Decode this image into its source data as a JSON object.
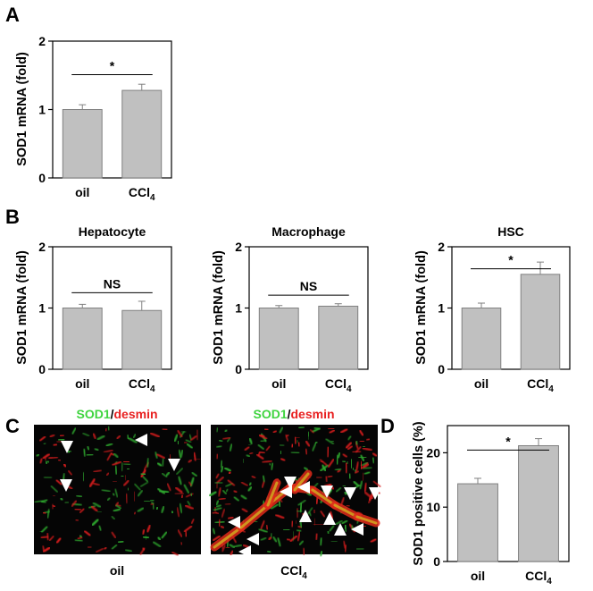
{
  "panel_labels": {
    "a": "A",
    "b": "B",
    "c": "C",
    "d": "D"
  },
  "colors": {
    "bar_fill": "#c0c0c0",
    "bar_stroke": "#808080",
    "marker_green": "#3fd43f",
    "marker_red": "#e82020",
    "axis": "#000000"
  },
  "chart_data": [
    {
      "id": "A",
      "type": "bar",
      "title": "",
      "categories": [
        "oil",
        "CCl4"
      ],
      "category_sub": [
        "",
        "4"
      ],
      "values": [
        1.0,
        1.28
      ],
      "errors": [
        0.07,
        0.09
      ],
      "ylabel": "SOD1 mRNA (fold)",
      "ylim": [
        0,
        2
      ],
      "yticks": [
        0,
        1,
        2
      ],
      "significance": "*",
      "grid": false
    },
    {
      "id": "B1",
      "type": "bar",
      "title": "Hepatocyte",
      "categories": [
        "oil",
        "CCl4"
      ],
      "category_sub": [
        "",
        "4"
      ],
      "values": [
        1.0,
        0.96
      ],
      "errors": [
        0.06,
        0.15
      ],
      "ylabel": "SOD1 mRNA (fold)",
      "ylim": [
        0,
        2
      ],
      "yticks": [
        0,
        1,
        2
      ],
      "significance": "NS",
      "grid": false
    },
    {
      "id": "B2",
      "type": "bar",
      "title": "Macrophage",
      "categories": [
        "oil",
        "CCl4"
      ],
      "category_sub": [
        "",
        "4"
      ],
      "values": [
        1.0,
        1.03
      ],
      "errors": [
        0.04,
        0.04
      ],
      "ylabel": "SOD1 mRNA (fold)",
      "ylim": [
        0,
        2
      ],
      "yticks": [
        0,
        1,
        2
      ],
      "significance": "NS",
      "grid": false
    },
    {
      "id": "B3",
      "type": "bar",
      "title": "HSC",
      "categories": [
        "oil",
        "CCl4"
      ],
      "category_sub": [
        "",
        "4"
      ],
      "values": [
        1.0,
        1.55
      ],
      "errors": [
        0.08,
        0.2
      ],
      "ylabel": "SOD1 mRNA (fold)",
      "ylim": [
        0,
        2
      ],
      "yticks": [
        0,
        1,
        2
      ],
      "significance": "*",
      "grid": false
    },
    {
      "id": "D",
      "type": "bar",
      "title": "",
      "categories": [
        "oil",
        "CCl4"
      ],
      "category_sub": [
        "",
        "4"
      ],
      "values": [
        14.3,
        21.3
      ],
      "errors": [
        1.0,
        1.3
      ],
      "ylabel": "SOD1 positive cells (%)",
      "ylim": [
        0,
        25
      ],
      "yticks": [
        0,
        10,
        20
      ],
      "significance": "*",
      "grid": false
    }
  ],
  "micrographs": [
    {
      "caption": "oil",
      "caption_sub": "",
      "stain_a": "SOD1",
      "sep": "/",
      "stain_b": "desmin"
    },
    {
      "caption": "CCl",
      "caption_sub": "4",
      "stain_a": "SOD1",
      "sep": "/",
      "stain_b": "desmin"
    }
  ]
}
